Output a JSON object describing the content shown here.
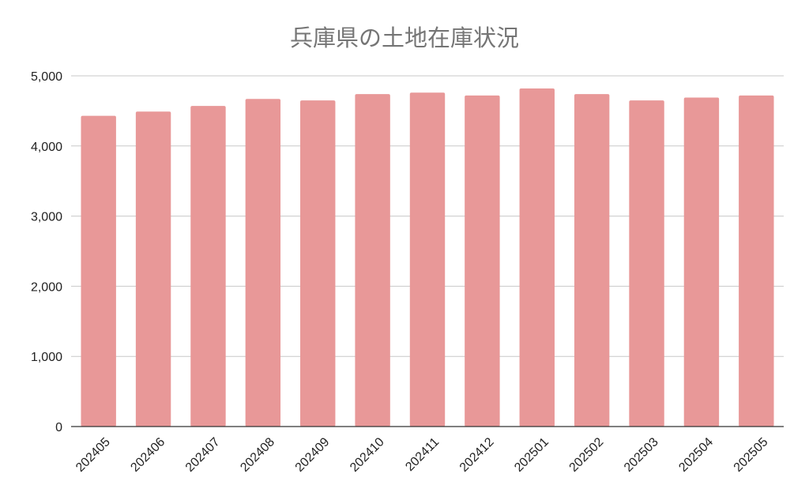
{
  "chart_data": {
    "type": "bar",
    "title": "兵庫県の土地在庫状況",
    "xlabel": "",
    "ylabel": "",
    "categories": [
      "202405",
      "202406",
      "202407",
      "202408",
      "202409",
      "202410",
      "202411",
      "202412",
      "202501",
      "202502",
      "202503",
      "202504",
      "202505"
    ],
    "values": [
      4430,
      4490,
      4570,
      4670,
      4650,
      4740,
      4760,
      4720,
      4820,
      4740,
      4650,
      4690,
      4720
    ],
    "ylim": [
      0,
      5000
    ],
    "yticks": [
      "0",
      "1,000",
      "2,000",
      "3,000",
      "4,000",
      "5,000"
    ],
    "ytick_values": [
      0,
      1000,
      2000,
      3000,
      4000,
      5000
    ],
    "grid": true,
    "legend": "none",
    "bar_color": "#e89898"
  }
}
